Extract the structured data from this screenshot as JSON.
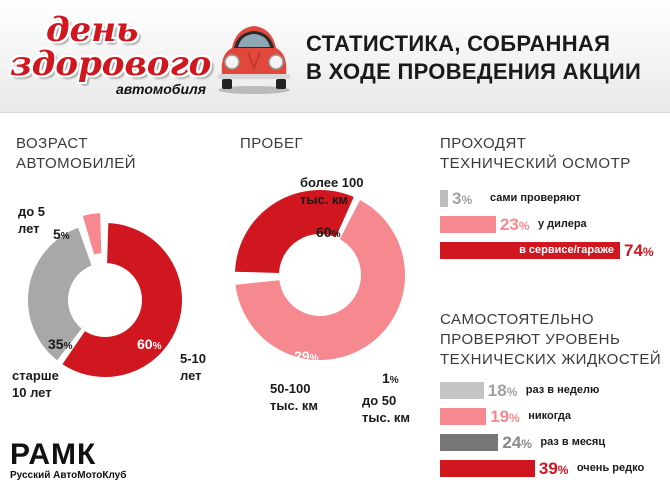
{
  "header": {
    "logo_line1": "день",
    "logo_line2": "здорового",
    "logo_line3": "автомобиля",
    "title_line1": "СТАТИСТИКА, СОБРАННАЯ",
    "title_line2": "В ХОДЕ ПРОВЕДЕНИЯ АКЦИИ"
  },
  "brand": {
    "name": "РАМК",
    "subtitle": "Русский АвтоМотоКлуб"
  },
  "colors": {
    "red": "#d0161f",
    "pink": "#f6888f",
    "gray": "#9b9b9b",
    "light_gray": "#c4c4c4",
    "dark_gray": "#777777"
  },
  "chart_data": [
    {
      "type": "pie",
      "title_line1": "ВОЗРАСТ",
      "title_line2": "АВТОМОБИЛЕЙ",
      "slices": [
        {
          "label": "5-10 лет",
          "label_line1": "5-10",
          "label_line2": "лет",
          "value": 60,
          "color": "#d0161f"
        },
        {
          "label": "старше 10 лет",
          "label_line1": "старше",
          "label_line2": "10 лет",
          "value": 35,
          "color": "#a8a8a8"
        },
        {
          "label": "до 5 лет",
          "label_line1": "до 5",
          "label_line2": "лет",
          "value": 5,
          "color": "#f6888f"
        }
      ]
    },
    {
      "type": "pie",
      "title_line1": "ПРОБЕГ",
      "slices": [
        {
          "label": "более 100 тыс. км",
          "label_line1": "более 100",
          "label_line2": "тыс. км",
          "value": 60,
          "color": "#f6888f"
        },
        {
          "label": "до 50 тыс. км",
          "label_line1": "до 50",
          "label_line2": "тыс. км",
          "value": 1,
          "color": "#a8a8a8"
        },
        {
          "label": "50-100 тыс. км",
          "label_line1": "50-100",
          "label_line2": "тыс. км",
          "value": 29,
          "color": "#d0161f"
        }
      ]
    },
    {
      "type": "bar",
      "title_line1": "ПРОХОДЯТ",
      "title_line2": "ТЕХНИЧЕСКИЙ ОСМОТР",
      "bars": [
        {
          "label": "сами проверяют",
          "value": 3,
          "color": "#bdbdbd"
        },
        {
          "label": "у дилера",
          "value": 23,
          "color": "#f6888f"
        },
        {
          "label": "в сервисе/гараже",
          "value": 74,
          "color": "#d0161f"
        }
      ]
    },
    {
      "type": "bar",
      "title_line1": "САМОСТОЯТЕЛЬНО",
      "title_line2": "ПРОВЕРЯЮТ УРОВЕНЬ",
      "title_line3": "ТЕХНИЧЕСКИХ ЖИДКОСТЕЙ",
      "bars": [
        {
          "label": "раз в неделю",
          "value": 18,
          "color": "#c4c4c4"
        },
        {
          "label": "никогда",
          "value": 19,
          "color": "#f6888f"
        },
        {
          "label": "раз в месяц",
          "value": 24,
          "color": "#777777"
        },
        {
          "label": "очень редко",
          "value": 39,
          "color": "#d0161f"
        }
      ]
    }
  ]
}
